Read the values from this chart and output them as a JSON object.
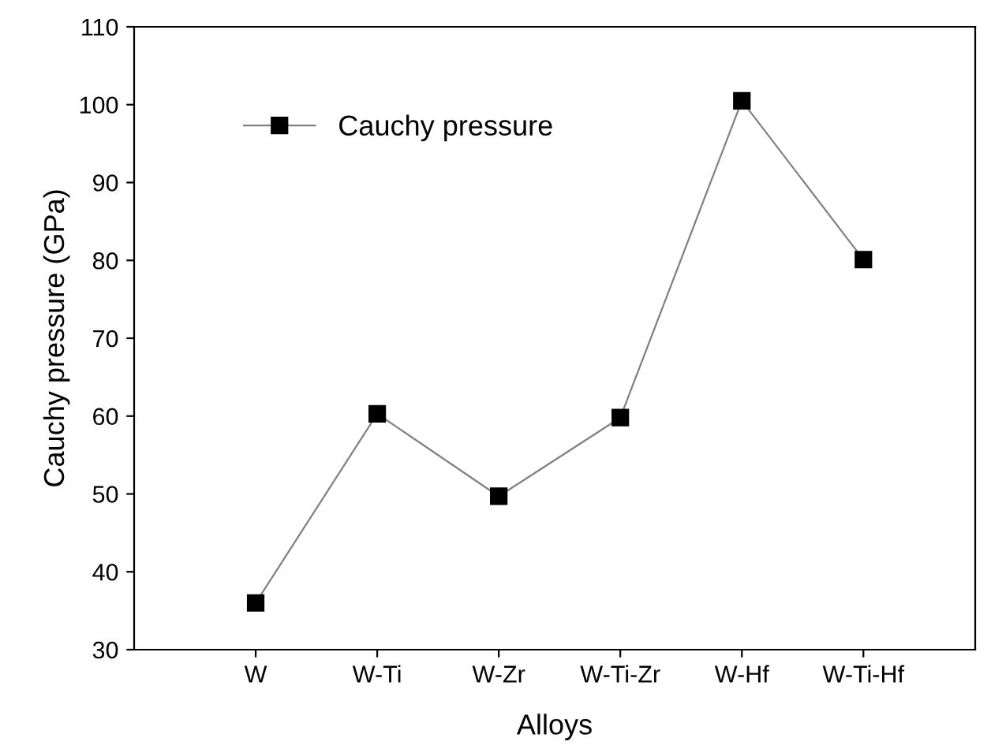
{
  "chart_data": {
    "type": "line",
    "xlabel": "Alloys",
    "ylabel": "Cauchy pressure (GPa)",
    "categories": [
      "W",
      "W-Ti",
      "W-Zr",
      "W-Ti-Zr",
      "W-Hf",
      "W-Ti-Hf"
    ],
    "series": [
      {
        "name": "Cauchy pressure",
        "color": "#000000",
        "values": [
          36,
          60.3,
          49.7,
          59.8,
          100.5,
          80.1
        ]
      }
    ],
    "ylim": [
      30,
      110
    ],
    "yticks": [
      30,
      40,
      50,
      60,
      70,
      80,
      90,
      100,
      110
    ],
    "marker": "square",
    "line_style": "solid",
    "legend": "top left",
    "grid": false
  }
}
